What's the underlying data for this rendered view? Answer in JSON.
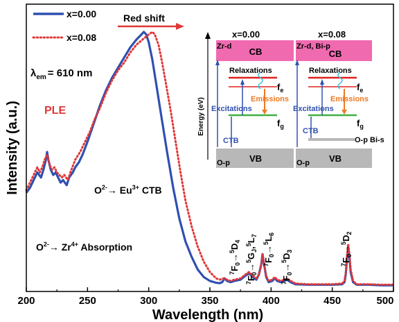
{
  "chart_data": {
    "type": "line",
    "xlabel": "Wavelength (nm)",
    "ylabel": "Intensity (a.u.)",
    "xlim": [
      200,
      500
    ],
    "xticks": [
      "200",
      "250",
      "300",
      "350",
      "400",
      "450",
      "500"
    ],
    "y_ticks_shown": false,
    "grid": false,
    "legend_position": "top-left",
    "series": [
      {
        "name": "x=0.00",
        "color": "#3050b0",
        "style": "solid",
        "points": [
          [
            200,
            0.37
          ],
          [
            203,
            0.39
          ],
          [
            206,
            0.42
          ],
          [
            209,
            0.45
          ],
          [
            212,
            0.43
          ],
          [
            214,
            0.46
          ],
          [
            216,
            0.5
          ],
          [
            217,
            0.53
          ],
          [
            218,
            0.5
          ],
          [
            220,
            0.46
          ],
          [
            222,
            0.44
          ],
          [
            224,
            0.45
          ],
          [
            226,
            0.43
          ],
          [
            228,
            0.41
          ],
          [
            230,
            0.42
          ],
          [
            233,
            0.4
          ],
          [
            235,
            0.43
          ],
          [
            238,
            0.45
          ],
          [
            240,
            0.47
          ],
          [
            243,
            0.49
          ],
          [
            246,
            0.52
          ],
          [
            250,
            0.57
          ],
          [
            255,
            0.64
          ],
          [
            260,
            0.71
          ],
          [
            265,
            0.77
          ],
          [
            270,
            0.82
          ],
          [
            275,
            0.86
          ],
          [
            280,
            0.9
          ],
          [
            285,
            0.94
          ],
          [
            290,
            0.97
          ],
          [
            294,
            0.99
          ],
          [
            296,
            1.0
          ],
          [
            298,
            0.99
          ],
          [
            300,
            0.96
          ],
          [
            303,
            0.89
          ],
          [
            306,
            0.8
          ],
          [
            310,
            0.68
          ],
          [
            315,
            0.53
          ],
          [
            320,
            0.39
          ],
          [
            325,
            0.27
          ],
          [
            330,
            0.18
          ],
          [
            335,
            0.12
          ],
          [
            340,
            0.07
          ],
          [
            345,
            0.04
          ],
          [
            350,
            0.025
          ],
          [
            355,
            0.018
          ],
          [
            358,
            0.016
          ],
          [
            360,
            0.02
          ],
          [
            362,
            0.035
          ],
          [
            364,
            0.025
          ],
          [
            367,
            0.02
          ],
          [
            370,
            0.025
          ],
          [
            375,
            0.03
          ],
          [
            379,
            0.045
          ],
          [
            382,
            0.055
          ],
          [
            385,
            0.04
          ],
          [
            388,
            0.03
          ],
          [
            390,
            0.05
          ],
          [
            392,
            0.09
          ],
          [
            393,
            0.13
          ],
          [
            394,
            0.1
          ],
          [
            396,
            0.04
          ],
          [
            398,
            0.02
          ],
          [
            401,
            0.025
          ],
          [
            403,
            0.035
          ],
          [
            405,
            0.025
          ],
          [
            408,
            0.02
          ],
          [
            411,
            0.025
          ],
          [
            413,
            0.03
          ],
          [
            416,
            0.02
          ],
          [
            420,
            0.012
          ],
          [
            430,
            0.01
          ],
          [
            440,
            0.01
          ],
          [
            450,
            0.01
          ],
          [
            458,
            0.012
          ],
          [
            460,
            0.02
          ],
          [
            461,
            0.05
          ],
          [
            462,
            0.11
          ],
          [
            463,
            0.16
          ],
          [
            464,
            0.12
          ],
          [
            465,
            0.06
          ],
          [
            467,
            0.02
          ],
          [
            470,
            0.01
          ],
          [
            480,
            0.01
          ],
          [
            490,
            0.008
          ],
          [
            500,
            0.008
          ]
        ]
      },
      {
        "name": "x=0.08",
        "color": "#e03838",
        "style": "dotted",
        "points": [
          [
            200,
            0.38
          ],
          [
            203,
            0.41
          ],
          [
            206,
            0.44
          ],
          [
            209,
            0.47
          ],
          [
            211,
            0.45
          ],
          [
            213,
            0.47
          ],
          [
            215,
            0.5
          ],
          [
            217,
            0.52
          ],
          [
            219,
            0.48
          ],
          [
            221,
            0.46
          ],
          [
            223,
            0.47
          ],
          [
            225,
            0.45
          ],
          [
            227,
            0.44
          ],
          [
            229,
            0.43
          ],
          [
            231,
            0.44
          ],
          [
            234,
            0.42
          ],
          [
            236,
            0.45
          ],
          [
            240,
            0.5
          ],
          [
            244,
            0.53
          ],
          [
            248,
            0.57
          ],
          [
            252,
            0.61
          ],
          [
            256,
            0.66
          ],
          [
            260,
            0.7
          ],
          [
            265,
            0.76
          ],
          [
            270,
            0.81
          ],
          [
            275,
            0.85
          ],
          [
            280,
            0.88
          ],
          [
            285,
            0.92
          ],
          [
            290,
            0.95
          ],
          [
            295,
            0.97
          ],
          [
            300,
            0.99
          ],
          [
            303,
            1.0
          ],
          [
            305,
            0.99
          ],
          [
            308,
            0.95
          ],
          [
            311,
            0.88
          ],
          [
            314,
            0.8
          ],
          [
            318,
            0.69
          ],
          [
            322,
            0.57
          ],
          [
            326,
            0.45
          ],
          [
            330,
            0.34
          ],
          [
            335,
            0.24
          ],
          [
            340,
            0.16
          ],
          [
            345,
            0.1
          ],
          [
            350,
            0.06
          ],
          [
            355,
            0.035
          ],
          [
            358,
            0.03
          ],
          [
            361,
            0.035
          ],
          [
            364,
            0.03
          ],
          [
            367,
            0.025
          ],
          [
            370,
            0.03
          ],
          [
            375,
            0.035
          ],
          [
            379,
            0.05
          ],
          [
            382,
            0.06
          ],
          [
            385,
            0.045
          ],
          [
            388,
            0.035
          ],
          [
            390,
            0.05
          ],
          [
            392,
            0.09
          ],
          [
            393,
            0.13
          ],
          [
            394,
            0.1
          ],
          [
            396,
            0.045
          ],
          [
            398,
            0.025
          ],
          [
            401,
            0.03
          ],
          [
            403,
            0.04
          ],
          [
            405,
            0.03
          ],
          [
            408,
            0.025
          ],
          [
            411,
            0.03
          ],
          [
            413,
            0.035
          ],
          [
            416,
            0.025
          ],
          [
            420,
            0.015
          ],
          [
            430,
            0.012
          ],
          [
            440,
            0.012
          ],
          [
            450,
            0.012
          ],
          [
            458,
            0.015
          ],
          [
            460,
            0.025
          ],
          [
            461,
            0.055
          ],
          [
            462,
            0.12
          ],
          [
            463,
            0.17
          ],
          [
            464,
            0.13
          ],
          [
            465,
            0.07
          ],
          [
            467,
            0.025
          ],
          [
            470,
            0.012
          ],
          [
            480,
            0.012
          ],
          [
            490,
            0.01
          ],
          [
            500,
            0.01
          ]
        ]
      }
    ],
    "annotations": {
      "red_shift": "Red shift",
      "lambda_sym": "λ",
      "lambda_sub": "em",
      "lambda_val": "= 610 nm",
      "ple": "PLE",
      "ctb_pre": "O",
      "ctb_sup1": "2-",
      "ctb_mid": "→ Eu",
      "ctb_sup2": "3+",
      "ctb_post": " CTB",
      "abs_pre": "O",
      "abs_sup1": "2-",
      "abs_mid": "→ Zr",
      "abs_sup2": "4+",
      "abs_post": " Absorption",
      "transitions": [
        {
          "sup_l": "7",
          "base": "F",
          "sub": "0",
          "arrow": "→",
          "sup_r": "5",
          "term": "D",
          "sub_r": "4"
        },
        {
          "sup_l": "7",
          "base": "F",
          "sub": "0",
          "arrow": "→",
          "sup_r": "5",
          "term": "G",
          "sub_r": "J",
          "extra_sup": "5",
          "extra_term": "L",
          "extra_sub": "7"
        },
        {
          "sup_l": "7",
          "base": "F",
          "sub": "0",
          "arrow": "→",
          "sup_r": "5",
          "term": "L",
          "sub_r": "6"
        },
        {
          "sup_l": "7",
          "base": "F",
          "sub": "0",
          "arrow": "→",
          "sup_r": "5",
          "term": "D",
          "sub_r": "3"
        },
        {
          "sup_l": "7",
          "base": "F",
          "sub": "0",
          "arrow": "→",
          "sup_r": "5",
          "term": "D",
          "sub_r": "2"
        }
      ]
    }
  },
  "inset": {
    "energy_label": "Energy (eV)",
    "panels": [
      {
        "title": "x=0.00",
        "cb": "CB",
        "cb_label": "Zr-d",
        "vb": "VB",
        "vb_label": "O-p",
        "relax": "Relaxations",
        "excite": "Excitations",
        "emit": "Emissions",
        "fe": "f",
        "fe_sub": "e",
        "fg": "f",
        "fg_sub": "g",
        "ctb": "CTB"
      },
      {
        "title": "x=0.08",
        "cb": "CB",
        "cb_label": "Zr-d, Bi-p",
        "vb": "VB",
        "vb_label": "O-p",
        "relax": "Relaxations",
        "excite": "Excitations",
        "emit": "Emissions",
        "fe": "f",
        "fe_sub": "e",
        "fg": "f",
        "fg_sub": "g",
        "ctb": "CTB",
        "bi_level": "O-p Bi-s"
      }
    ],
    "colors": {
      "cb": "#f06ab0",
      "vb": "#b8b8b8",
      "excite": "#3050b0",
      "emit": "#f07820",
      "relax": "#40c0e0",
      "red_level": "#e02020",
      "green_level": "#40b040"
    }
  }
}
